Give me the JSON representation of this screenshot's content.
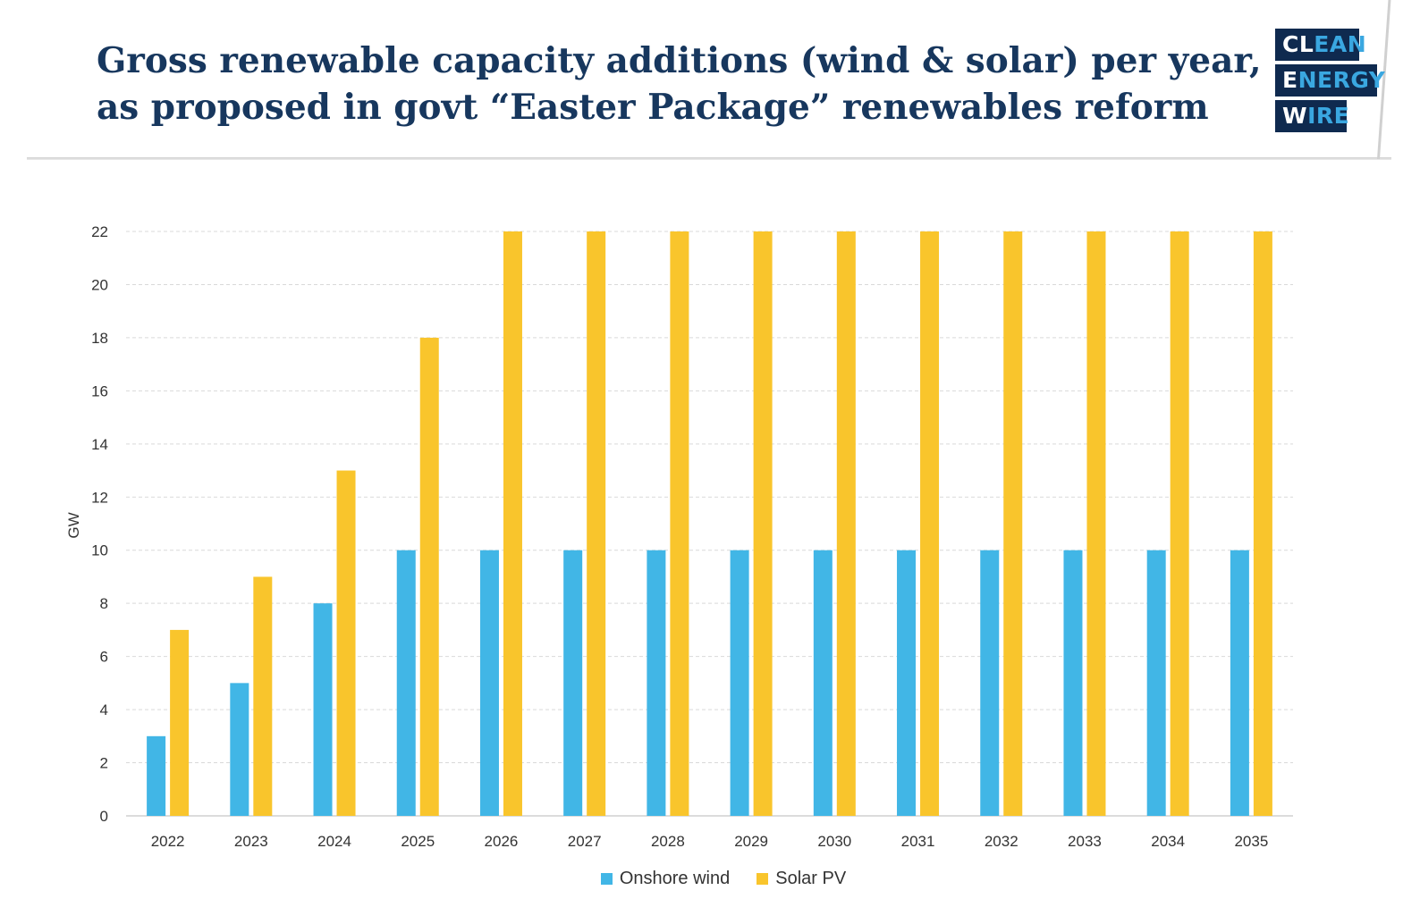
{
  "header": {
    "title_line1": "Gross renewable capacity additions (wind & solar) per year,",
    "title_line2": "as proposed in govt “Easter Package” renewables reform"
  },
  "logo": {
    "row1": {
      "a": "CL",
      "b": "EAN"
    },
    "row2": {
      "a": "E",
      "b": "NERGY"
    },
    "row3": {
      "a": "W",
      "b": "IRE"
    }
  },
  "colors": {
    "title": "#17375e",
    "logo_bg": "#0f2a4f",
    "logo_accent": "#3aa7e0",
    "onshore_wind": "#41b6e6",
    "solar_pv": "#f9c52c",
    "grid": "#d9d9d9"
  },
  "chart_data": {
    "type": "bar",
    "title": "Gross renewable capacity additions (wind & solar) per year, as proposed in govt “Easter Package” renewables reform",
    "xlabel": "",
    "ylabel": "GW",
    "ylim": [
      0,
      22
    ],
    "yticks": [
      0,
      2,
      4,
      6,
      8,
      10,
      12,
      14,
      16,
      18,
      20,
      22
    ],
    "grid": true,
    "legend_position": "bottom-center",
    "categories": [
      "2022",
      "2023",
      "2024",
      "2025",
      "2026",
      "2027",
      "2028",
      "2029",
      "2030",
      "2031",
      "2032",
      "2033",
      "2034",
      "2035"
    ],
    "series": [
      {
        "name": "Onshore wind",
        "color": "#41b6e6",
        "values": [
          3,
          5,
          8,
          10,
          10,
          10,
          10,
          10,
          10,
          10,
          10,
          10,
          10,
          10
        ]
      },
      {
        "name": "Solar PV",
        "color": "#f9c52c",
        "values": [
          7,
          9,
          13,
          18,
          22,
          22,
          22,
          22,
          22,
          22,
          22,
          22,
          22,
          22
        ]
      }
    ]
  }
}
